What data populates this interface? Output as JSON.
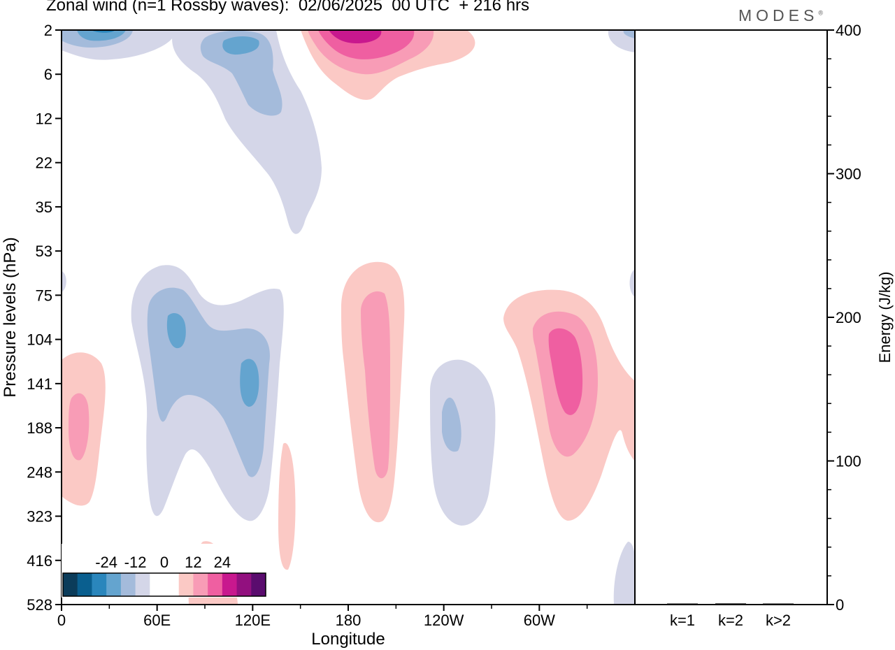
{
  "header": {
    "title": "Zonal wind (n=1 Rossby waves):  02/06/2025  00 UTC  + 216 hrs",
    "brand": "MODES",
    "brand_mark": "®"
  },
  "chart_data": [
    {
      "type": "heatmap",
      "title": "Zonal wind (n=1 Rossby waves):  02/06/2025  00 UTC  + 216 hrs",
      "xlabel": "Longitude",
      "ylabel": "Pressure levels (hPa)",
      "x_ticks": [
        "0",
        "60E",
        "120E",
        "180",
        "120W",
        "60W"
      ],
      "x_tick_positions_deg": [
        0,
        60,
        120,
        180,
        240,
        300
      ],
      "xlim_deg": [
        0,
        360
      ],
      "y_ticks": [
        "2",
        "6",
        "12",
        "22",
        "35",
        "53",
        "75",
        "104",
        "141",
        "188",
        "248",
        "323",
        "416",
        "528"
      ],
      "y_scale": "pressure levels, evenly spaced, 2 hPa at top",
      "colorbar": {
        "tick_labels": [
          "-24",
          "-12",
          "0",
          "12",
          "24"
        ],
        "tick_values": [
          -24,
          -12,
          0,
          12,
          24
        ],
        "colors": [
          "#0b3c5a",
          "#0a5f8f",
          "#2a86bc",
          "#64a4cf",
          "#a4bbdb",
          "#d4d6e8",
          "#ffffff",
          "#ffffff",
          "#fbc9c5",
          "#f89cb6",
          "#ef5fa1",
          "#c8188e",
          "#92107f",
          "#5a0c6e"
        ]
      },
      "regions": [
        {
          "sign": "negative",
          "lon": 16,
          "level": "2",
          "peak": -12
        },
        {
          "sign": "negative",
          "lon": 105,
          "level": "4",
          "peak": -9
        },
        {
          "sign": "negative",
          "lon": 135,
          "level": "22",
          "peak": -3
        },
        {
          "sign": "positive",
          "lon": 195,
          "level": "2",
          "peak": 18
        },
        {
          "sign": "negative",
          "lon": 65,
          "level": "104",
          "peak": -9
        },
        {
          "sign": "negative",
          "lon": 118,
          "level": "141",
          "peak": -9
        },
        {
          "sign": "positive",
          "lon": 10,
          "level": "188",
          "peak": 6
        },
        {
          "sign": "positive",
          "lon": 88,
          "level": "528",
          "peak": 3
        },
        {
          "sign": "positive",
          "lon": 142,
          "level": "323",
          "peak": 3
        },
        {
          "sign": "positive",
          "lon": 196,
          "level": "141",
          "peak": 6
        },
        {
          "sign": "negative",
          "lon": 244,
          "level": "188",
          "peak": -6
        },
        {
          "sign": "positive",
          "lon": 318,
          "level": "141",
          "peak": 12
        },
        {
          "sign": "negative",
          "lon": 356,
          "level": "528",
          "peak": -3
        }
      ]
    },
    {
      "type": "bar",
      "categories": [
        "k=1",
        "k=2",
        "k>2"
      ],
      "values": [
        0.3,
        0.8,
        0.5
      ],
      "ylabel": "Energy (J/kg)",
      "ylim": [
        0,
        400
      ],
      "y_ticks": [
        0,
        100,
        200,
        300,
        400
      ],
      "y_ticks_text": [
        "0",
        "100",
        "200",
        "300",
        "400"
      ]
    }
  ]
}
